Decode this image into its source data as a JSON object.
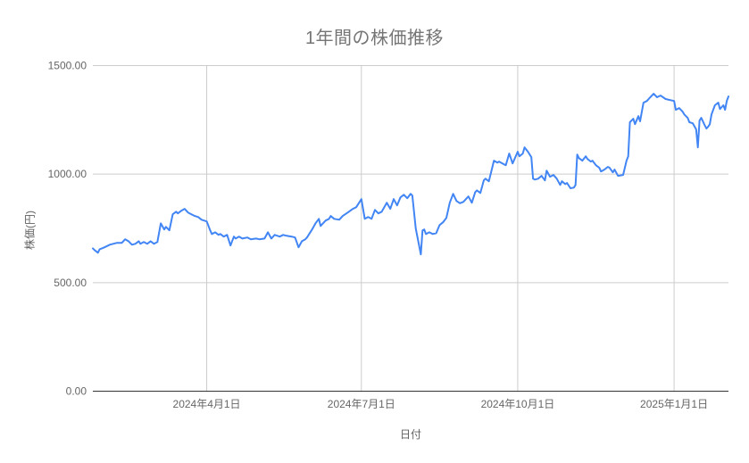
{
  "title": "1年間の株価推移",
  "chart_data": {
    "type": "line",
    "title": "1年間の株価推移",
    "xlabel": "日付",
    "ylabel": "株価(円)",
    "line_color": "#4285f4",
    "background_color": "#ffffff",
    "ylim": [
      0,
      1500
    ],
    "grid": true,
    "legend": "none",
    "y_ticks": [
      {
        "value": 0,
        "label": "0.00"
      },
      {
        "value": 500,
        "label": "500.00"
      },
      {
        "value": 1000,
        "label": "1000.00"
      },
      {
        "value": 1500,
        "label": "1500.00"
      }
    ],
    "x_ticks": [
      {
        "date": "2024-04-01",
        "label": "2024年4月1日"
      },
      {
        "date": "2024-07-01",
        "label": "2024年7月1日"
      },
      {
        "date": "2024-10-01",
        "label": "2024年10月1日"
      },
      {
        "date": "2025-01-01",
        "label": "2025年1月1日"
      }
    ],
    "series": [
      {
        "name": "株価",
        "points": [
          [
            "2024-01-25",
            658
          ],
          [
            "2024-01-26",
            650
          ],
          [
            "2024-01-28",
            638
          ],
          [
            "2024-01-29",
            654
          ],
          [
            "2024-01-31",
            660
          ],
          [
            "2024-02-02",
            667
          ],
          [
            "2024-02-04",
            675
          ],
          [
            "2024-02-08",
            683
          ],
          [
            "2024-02-11",
            683
          ],
          [
            "2024-02-13",
            700
          ],
          [
            "2024-02-15",
            691
          ],
          [
            "2024-02-17",
            675
          ],
          [
            "2024-02-19",
            679
          ],
          [
            "2024-02-21",
            691
          ],
          [
            "2024-02-22",
            679
          ],
          [
            "2024-02-24",
            687
          ],
          [
            "2024-02-26",
            679
          ],
          [
            "2024-02-28",
            691
          ],
          [
            "2024-03-01",
            679
          ],
          [
            "2024-03-03",
            687
          ],
          [
            "2024-03-05",
            773
          ],
          [
            "2024-03-07",
            745
          ],
          [
            "2024-03-08",
            757
          ],
          [
            "2024-03-10",
            741
          ],
          [
            "2024-03-12",
            815
          ],
          [
            "2024-03-14",
            827
          ],
          [
            "2024-03-15",
            819
          ],
          [
            "2024-03-17",
            831
          ],
          [
            "2024-03-19",
            840
          ],
          [
            "2024-03-21",
            823
          ],
          [
            "2024-03-23",
            815
          ],
          [
            "2024-03-25",
            807
          ],
          [
            "2024-03-27",
            802
          ],
          [
            "2024-03-29",
            790
          ],
          [
            "2024-04-01",
            782
          ],
          [
            "2024-04-03",
            741
          ],
          [
            "2024-04-04",
            724
          ],
          [
            "2024-04-06",
            732
          ],
          [
            "2024-04-08",
            720
          ],
          [
            "2024-04-09",
            724
          ],
          [
            "2024-04-11",
            712
          ],
          [
            "2024-04-13",
            720
          ],
          [
            "2024-04-15",
            671
          ],
          [
            "2024-04-17",
            712
          ],
          [
            "2024-04-18",
            703
          ],
          [
            "2024-04-20",
            712
          ],
          [
            "2024-04-22",
            703
          ],
          [
            "2024-04-25",
            708
          ],
          [
            "2024-04-27",
            700
          ],
          [
            "2024-04-30",
            703
          ],
          [
            "2024-05-02",
            700
          ],
          [
            "2024-05-05",
            703
          ],
          [
            "2024-05-07",
            732
          ],
          [
            "2024-05-09",
            703
          ],
          [
            "2024-05-11",
            720
          ],
          [
            "2024-05-14",
            712
          ],
          [
            "2024-05-16",
            720
          ],
          [
            "2024-05-18",
            716
          ],
          [
            "2024-05-21",
            712
          ],
          [
            "2024-05-23",
            708
          ],
          [
            "2024-05-25",
            663
          ],
          [
            "2024-05-27",
            691
          ],
          [
            "2024-05-29",
            700
          ],
          [
            "2024-05-30",
            708
          ],
          [
            "2024-06-02",
            745
          ],
          [
            "2024-06-04",
            773
          ],
          [
            "2024-06-06",
            794
          ],
          [
            "2024-06-07",
            761
          ],
          [
            "2024-06-10",
            786
          ],
          [
            "2024-06-12",
            794
          ],
          [
            "2024-06-13",
            807
          ],
          [
            "2024-06-15",
            794
          ],
          [
            "2024-06-18",
            790
          ],
          [
            "2024-06-20",
            807
          ],
          [
            "2024-06-23",
            823
          ],
          [
            "2024-06-26",
            840
          ],
          [
            "2024-06-28",
            848
          ],
          [
            "2024-07-01",
            885
          ],
          [
            "2024-07-03",
            794
          ],
          [
            "2024-07-05",
            802
          ],
          [
            "2024-07-07",
            794
          ],
          [
            "2024-07-09",
            835
          ],
          [
            "2024-07-11",
            819
          ],
          [
            "2024-07-13",
            827
          ],
          [
            "2024-07-16",
            868
          ],
          [
            "2024-07-18",
            840
          ],
          [
            "2024-07-20",
            885
          ],
          [
            "2024-07-22",
            856
          ],
          [
            "2024-07-24",
            893
          ],
          [
            "2024-07-26",
            905
          ],
          [
            "2024-07-28",
            889
          ],
          [
            "2024-07-30",
            909
          ],
          [
            "2024-07-31",
            901
          ],
          [
            "2024-08-02",
            750
          ],
          [
            "2024-08-05",
            630
          ],
          [
            "2024-08-06",
            741
          ],
          [
            "2024-08-07",
            745
          ],
          [
            "2024-08-08",
            724
          ],
          [
            "2024-08-10",
            732
          ],
          [
            "2024-08-12",
            724
          ],
          [
            "2024-08-14",
            728
          ],
          [
            "2024-08-16",
            765
          ],
          [
            "2024-08-18",
            778
          ],
          [
            "2024-08-20",
            798
          ],
          [
            "2024-08-22",
            868
          ],
          [
            "2024-08-24",
            909
          ],
          [
            "2024-08-26",
            876
          ],
          [
            "2024-08-28",
            866
          ],
          [
            "2024-08-30",
            872
          ],
          [
            "2024-09-02",
            897
          ],
          [
            "2024-09-04",
            868
          ],
          [
            "2024-09-06",
            917
          ],
          [
            "2024-09-07",
            925
          ],
          [
            "2024-09-09",
            913
          ],
          [
            "2024-09-11",
            971
          ],
          [
            "2024-09-12",
            979
          ],
          [
            "2024-09-14",
            967
          ],
          [
            "2024-09-17",
            1062
          ],
          [
            "2024-09-19",
            1053
          ],
          [
            "2024-09-20",
            1058
          ],
          [
            "2024-09-22",
            1049
          ],
          [
            "2024-09-24",
            1041
          ],
          [
            "2024-09-26",
            1095
          ],
          [
            "2024-09-28",
            1049
          ],
          [
            "2024-10-01",
            1103
          ],
          [
            "2024-10-02",
            1082
          ],
          [
            "2024-10-04",
            1095
          ],
          [
            "2024-10-05",
            1123
          ],
          [
            "2024-10-07",
            1103
          ],
          [
            "2024-10-09",
            1078
          ],
          [
            "2024-10-10",
            979
          ],
          [
            "2024-10-11",
            975
          ],
          [
            "2024-10-13",
            979
          ],
          [
            "2024-10-15",
            992
          ],
          [
            "2024-10-17",
            971
          ],
          [
            "2024-10-18",
            1016
          ],
          [
            "2024-10-20",
            988
          ],
          [
            "2024-10-22",
            996
          ],
          [
            "2024-10-24",
            979
          ],
          [
            "2024-10-26",
            950
          ],
          [
            "2024-10-27",
            967
          ],
          [
            "2024-10-29",
            954
          ],
          [
            "2024-10-30",
            959
          ],
          [
            "2024-11-01",
            935
          ],
          [
            "2024-11-03",
            938
          ],
          [
            "2024-11-04",
            950
          ],
          [
            "2024-11-05",
            1090
          ],
          [
            "2024-11-06",
            1074
          ],
          [
            "2024-11-08",
            1062
          ],
          [
            "2024-11-10",
            1082
          ],
          [
            "2024-11-11",
            1070
          ],
          [
            "2024-11-13",
            1058
          ],
          [
            "2024-11-14",
            1062
          ],
          [
            "2024-11-16",
            1041
          ],
          [
            "2024-11-18",
            1029
          ],
          [
            "2024-11-19",
            1012
          ],
          [
            "2024-11-21",
            1021
          ],
          [
            "2024-11-23",
            1033
          ],
          [
            "2024-11-24",
            1030
          ],
          [
            "2024-11-26",
            1008
          ],
          [
            "2024-11-27",
            1021
          ],
          [
            "2024-11-29",
            992
          ],
          [
            "2024-12-02",
            996
          ],
          [
            "2024-12-04",
            1062
          ],
          [
            "2024-12-05",
            1082
          ],
          [
            "2024-12-06",
            1239
          ],
          [
            "2024-12-08",
            1255
          ],
          [
            "2024-12-09",
            1230
          ],
          [
            "2024-12-11",
            1267
          ],
          [
            "2024-12-12",
            1243
          ],
          [
            "2024-12-14",
            1329
          ],
          [
            "2024-12-16",
            1337
          ],
          [
            "2024-12-18",
            1354
          ],
          [
            "2024-12-20",
            1370
          ],
          [
            "2024-12-22",
            1354
          ],
          [
            "2024-12-24",
            1362
          ],
          [
            "2024-12-27",
            1346
          ],
          [
            "2025-01-01",
            1337
          ],
          [
            "2025-01-02",
            1296
          ],
          [
            "2025-01-04",
            1304
          ],
          [
            "2025-01-06",
            1288
          ],
          [
            "2025-01-07",
            1275
          ],
          [
            "2025-01-09",
            1259
          ],
          [
            "2025-01-10",
            1239
          ],
          [
            "2025-01-12",
            1234
          ],
          [
            "2025-01-14",
            1206
          ],
          [
            "2025-01-15",
            1123
          ],
          [
            "2025-01-16",
            1247
          ],
          [
            "2025-01-17",
            1259
          ],
          [
            "2025-01-19",
            1226
          ],
          [
            "2025-01-20",
            1210
          ],
          [
            "2025-01-21",
            1218
          ],
          [
            "2025-01-22",
            1230
          ],
          [
            "2025-01-23",
            1275
          ],
          [
            "2025-01-25",
            1317
          ],
          [
            "2025-01-27",
            1329
          ],
          [
            "2025-01-28",
            1300
          ],
          [
            "2025-01-30",
            1317
          ],
          [
            "2025-01-31",
            1296
          ],
          [
            "2025-02-01",
            1337
          ],
          [
            "2025-02-02",
            1358
          ]
        ]
      }
    ]
  }
}
